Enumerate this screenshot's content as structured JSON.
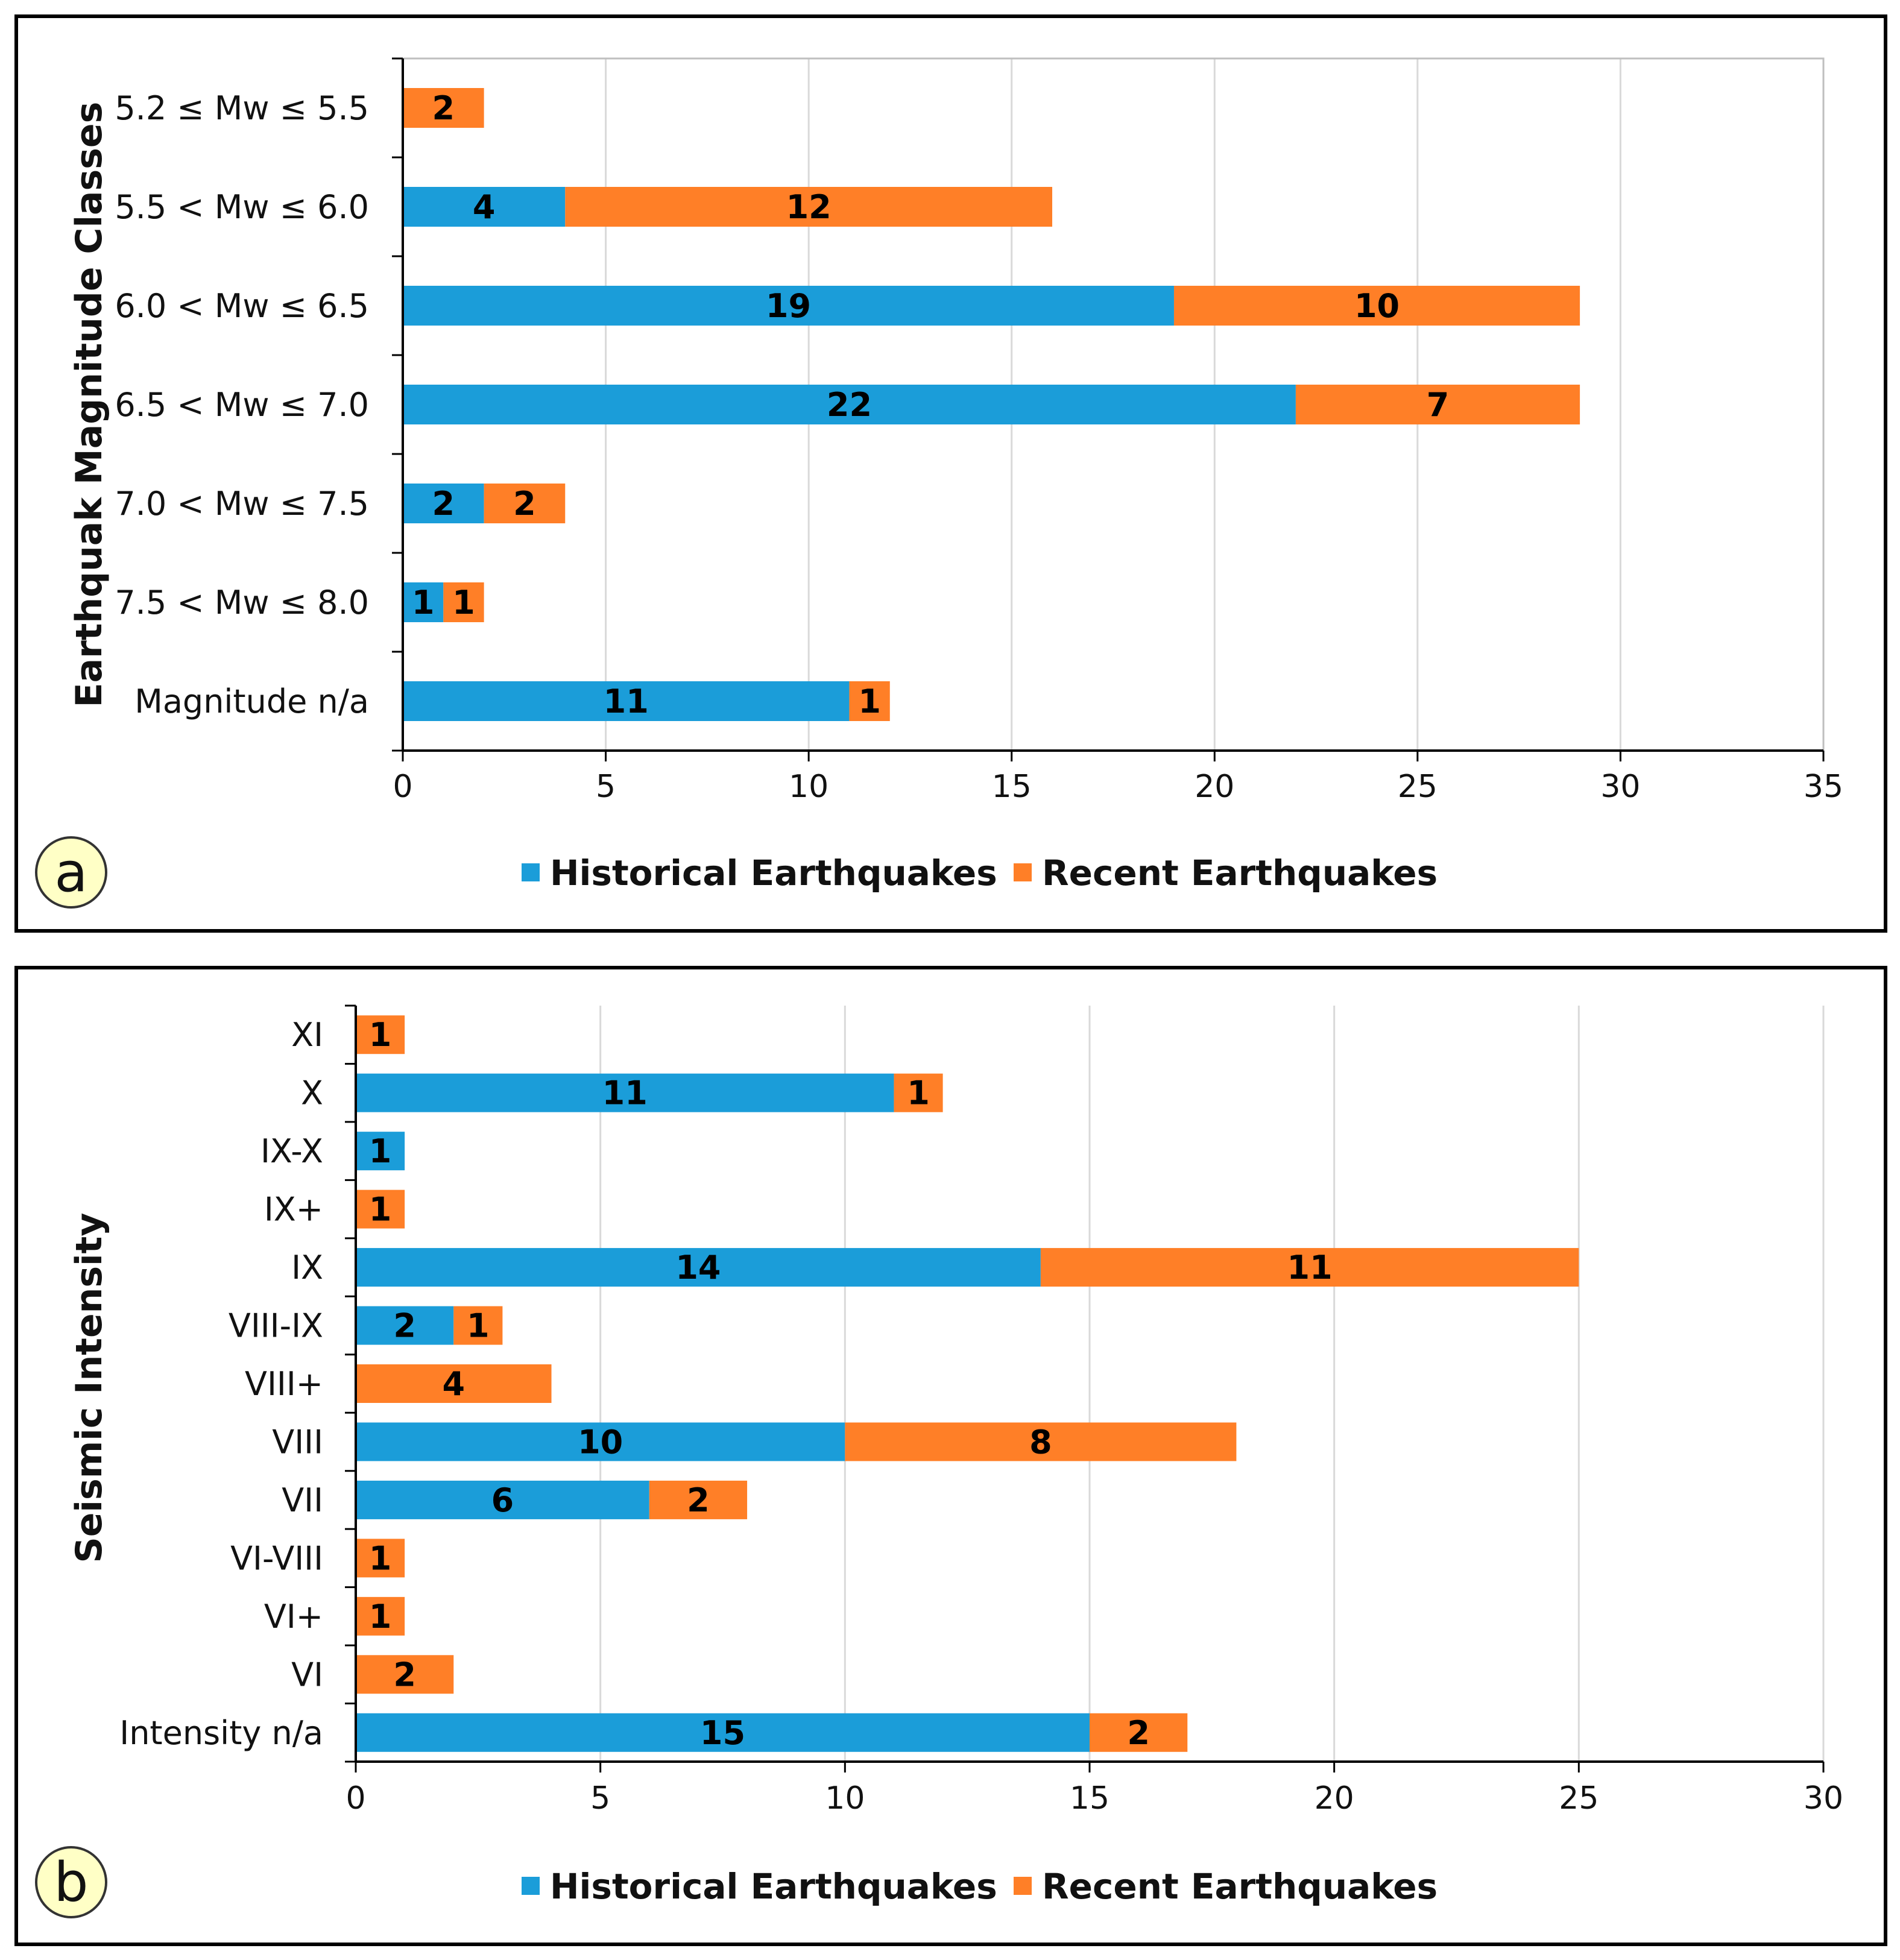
{
  "colors": {
    "historical": "#1B9DD9",
    "recent": "#FF7F27",
    "grid": "#D9D9D9",
    "frame": "#000000",
    "badge": "#FFFFC6"
  },
  "legend": {
    "historical": "Historical Earthquakes",
    "recent": "Recent Earthquakes"
  },
  "chart_data": [
    {
      "type": "bar",
      "orientation": "horizontal",
      "stacked": true,
      "panel_label": "a",
      "ylabel": "Earthquak Magnitude Classes",
      "xlim": [
        0,
        35
      ],
      "xticks": [
        "0",
        "5",
        "10",
        "15",
        "20",
        "25",
        "30",
        "35"
      ],
      "categories": [
        "5.2 ≤ Mw ≤ 5.5",
        "5.5 < Mw ≤ 6.0",
        "6.0 < Mw ≤ 6.5",
        "6.5 < Mw ≤ 7.0",
        "7.0 < Mw ≤ 7.5",
        "7.5 < Mw ≤ 8.0",
        "Magnitude n/a"
      ],
      "series": [
        {
          "name": "Historical Earthquakes",
          "values": [
            0,
            4,
            19,
            22,
            2,
            1,
            11
          ]
        },
        {
          "name": "Recent Earthquakes",
          "values": [
            2,
            12,
            10,
            7,
            2,
            1,
            1
          ]
        }
      ],
      "legend_position": "bottom"
    },
    {
      "type": "bar",
      "orientation": "horizontal",
      "stacked": true,
      "panel_label": "b",
      "ylabel": "Seismic Intensity",
      "xlim": [
        0,
        30
      ],
      "xticks": [
        "0",
        "5",
        "10",
        "15",
        "20",
        "25",
        "30"
      ],
      "categories": [
        "XI",
        "X",
        "IX-X",
        "IX+",
        "IX",
        "VIII-IX",
        "VIII+",
        "VIII",
        "VII",
        "VI-VIII",
        "VI+",
        "VI",
        "Intensity n/a"
      ],
      "series": [
        {
          "name": "Historical Earthquakes",
          "values": [
            0,
            11,
            1,
            0,
            14,
            2,
            0,
            10,
            6,
            0,
            0,
            0,
            15
          ]
        },
        {
          "name": "Recent Earthquakes",
          "values": [
            1,
            1,
            0,
            1,
            11,
            1,
            4,
            8,
            2,
            1,
            1,
            2,
            2
          ]
        }
      ],
      "legend_position": "bottom"
    }
  ]
}
